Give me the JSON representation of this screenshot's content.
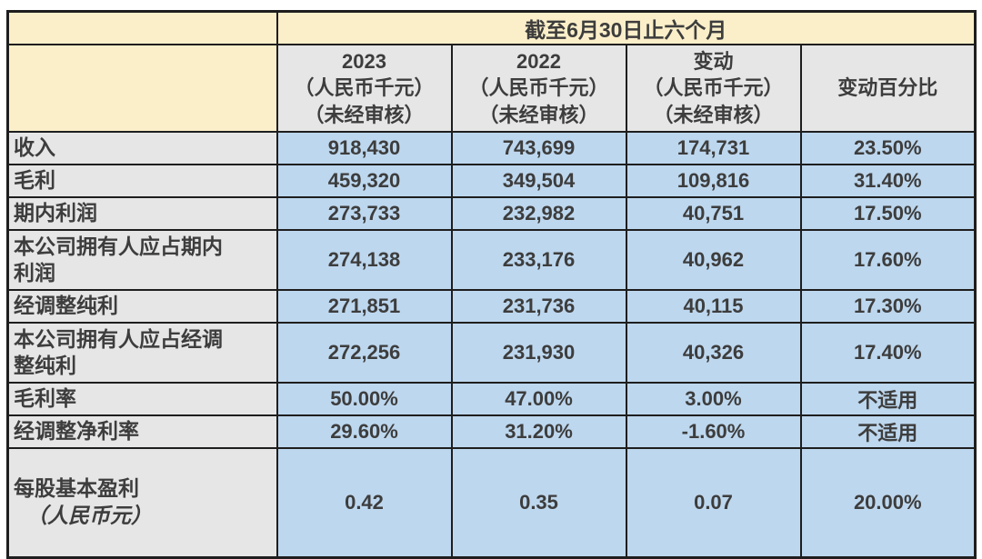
{
  "colors": {
    "yellow": "#FBEFC9",
    "gray": "#E7E6E6",
    "blue": "#BDD7EE",
    "border": "#1E1E1E",
    "text": "#3D3D3D",
    "page_bg": "#FFFFFF"
  },
  "table": {
    "period_header": "截至6月30日止六个月",
    "columns": [
      {
        "title": "2023",
        "unit": "（人民币千元）",
        "note": "（未经审核）"
      },
      {
        "title": "2022",
        "unit": "（人民币千元）",
        "note": "（未经审核）"
      },
      {
        "title": "变动",
        "unit": "（人民币千元）",
        "note": "（未经审核）"
      },
      {
        "title": "变动百分比",
        "unit": "",
        "note": ""
      }
    ],
    "rows": [
      {
        "label": "收入",
        "values": [
          "918,430",
          "743,699",
          "174,731",
          "23.50%"
        ]
      },
      {
        "label": "毛利",
        "values": [
          "459,320",
          "349,504",
          "109,816",
          "31.40%"
        ]
      },
      {
        "label": "期内利润",
        "values": [
          "273,733",
          "232,982",
          "40,751",
          "17.50%"
        ]
      },
      {
        "label": "本公司拥有人应占期内\n利润",
        "values": [
          "274,138",
          "233,176",
          "40,962",
          "17.60%"
        ]
      },
      {
        "label": "经调整纯利",
        "values": [
          "271,851",
          "231,736",
          "40,115",
          "17.30%"
        ]
      },
      {
        "label": "本公司拥有人应占经调\n整纯利",
        "values": [
          "272,256",
          "231,930",
          "40,326",
          "17.40%"
        ]
      },
      {
        "label": "毛利率",
        "values": [
          "50.00%",
          "47.00%",
          "3.00%",
          "不适用"
        ]
      },
      {
        "label": "经调整净利率",
        "values": [
          "29.60%",
          "31.20%",
          "-1.60%",
          "不适用"
        ]
      },
      {
        "label": "每股基本盈利",
        "label_sub": "（人民币元）",
        "values": [
          "0.42",
          "0.35",
          "0.07",
          "20.00%"
        ]
      }
    ]
  }
}
